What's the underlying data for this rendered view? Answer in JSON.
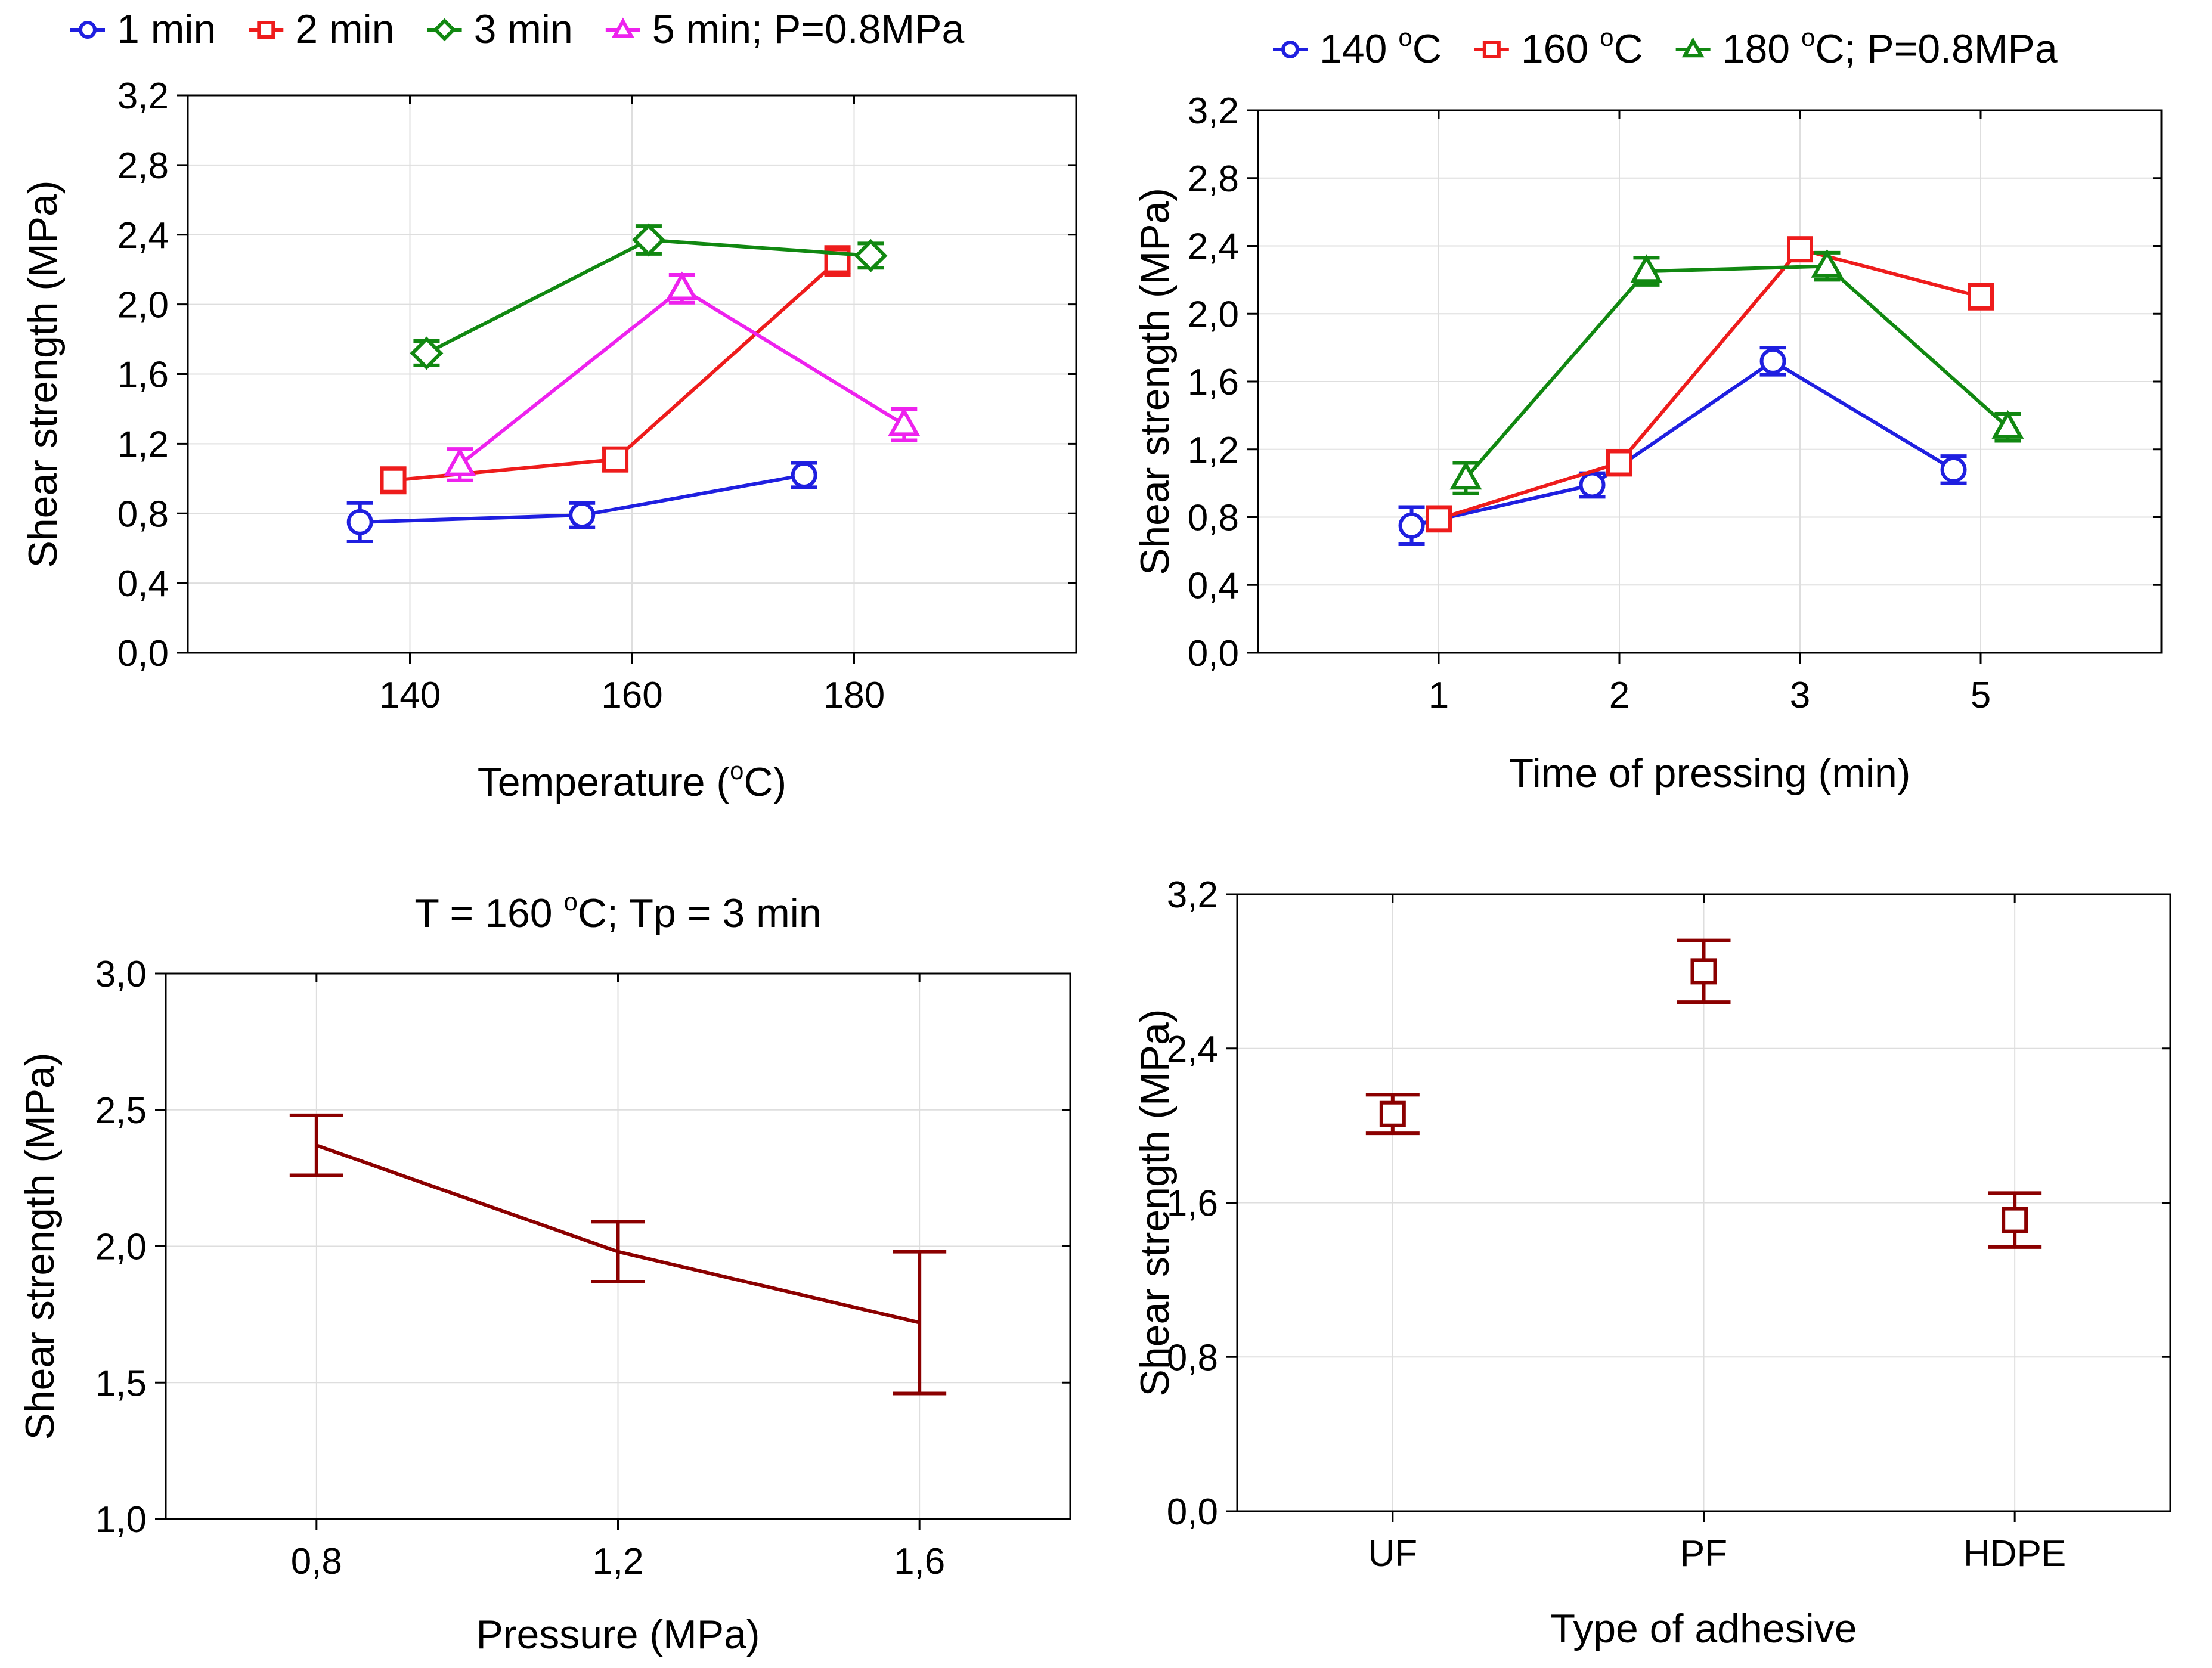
{
  "chart_data": [
    {
      "id": "a",
      "type": "line",
      "title": "",
      "xlabel": "Temperature",
      "xlabel_unit": "C",
      "xlabel_sup": "o",
      "ylabel": "Shear strength (MPa)",
      "x_ticks": [
        140,
        160,
        180
      ],
      "x_tick_labels": [
        "140",
        "160",
        "180"
      ],
      "xlim": [
        120,
        200
      ],
      "ylim": [
        0,
        3.2
      ],
      "y_ticks": [
        0,
        0.4,
        0.8,
        1.2,
        1.6,
        2.0,
        2.4,
        2.8,
        3.2
      ],
      "y_tick_labels": [
        "0,0",
        "0,4",
        "0,8",
        "1,2",
        "1,6",
        "2,0",
        "2,4",
        "2,8",
        "3,2"
      ],
      "legend_position": "top",
      "legend_suffix": "; P=0.8MPa",
      "series": [
        {
          "name": "1 min",
          "color": "#1f1fe0",
          "marker": "circle",
          "points": [
            [
              135.5,
              0.75,
              0.11
            ],
            [
              155.5,
              0.79,
              0.07
            ],
            [
              175.5,
              1.02,
              0.07
            ]
          ]
        },
        {
          "name": "2 min",
          "color": "#ee1c1c",
          "marker": "square",
          "points": [
            [
              138.5,
              0.99,
              0.07
            ],
            [
              158.5,
              1.11,
              0.06
            ],
            [
              178.5,
              2.25,
              0.08
            ]
          ]
        },
        {
          "name": "3 min",
          "color": "#118811",
          "marker": "diamond",
          "points": [
            [
              141.5,
              1.72,
              0.07
            ],
            [
              161.5,
              2.37,
              0.08
            ],
            [
              181.5,
              2.28,
              0.07
            ]
          ]
        },
        {
          "name": "5 min",
          "color": "#ee22ee",
          "marker": "triangle",
          "points": [
            [
              144.5,
              1.08,
              0.09
            ],
            [
              164.5,
              2.09,
              0.08
            ],
            [
              184.5,
              1.31,
              0.09
            ]
          ]
        }
      ]
    },
    {
      "id": "b",
      "type": "line",
      "title": "",
      "xlabel": "Time of pressing (min)",
      "ylabel": "Shear strength (MPa)",
      "x_ticks": [
        1,
        2,
        3,
        4
      ],
      "x_tick_labels": [
        "1",
        "2",
        "3",
        "5"
      ],
      "xlim": [
        0,
        5
      ],
      "ylim": [
        0,
        3.2
      ],
      "y_ticks": [
        0,
        0.4,
        0.8,
        1.2,
        1.6,
        2.0,
        2.4,
        2.8,
        3.2
      ],
      "y_tick_labels": [
        "0,0",
        "0,4",
        "0,8",
        "1,2",
        "1,6",
        "2,0",
        "2,4",
        "2,8",
        "3,2"
      ],
      "legend_position": "top",
      "legend_suffix": "; P=0.8MPa",
      "legend_sup": "o",
      "legend_unit": "C",
      "series": [
        {
          "name": "140",
          "color": "#1f1fe0",
          "marker": "circle",
          "points": [
            [
              0.85,
              0.75,
              0.11
            ],
            [
              1.85,
              0.99,
              0.07
            ],
            [
              2.85,
              1.72,
              0.08
            ],
            [
              3.85,
              1.08,
              0.08
            ]
          ]
        },
        {
          "name": "160",
          "color": "#ee1c1c",
          "marker": "square",
          "points": [
            [
              1.0,
              0.79,
              0.07
            ],
            [
              2.0,
              1.12,
              0.07
            ],
            [
              3.0,
              2.38,
              0.06
            ],
            [
              4.0,
              2.1,
              0.07
            ]
          ]
        },
        {
          "name": "180",
          "color": "#118811",
          "marker": "triangle",
          "points": [
            [
              1.15,
              1.03,
              0.09
            ],
            [
              2.15,
              2.25,
              0.08
            ],
            [
              3.15,
              2.28,
              0.08
            ],
            [
              4.15,
              1.33,
              0.08
            ]
          ]
        }
      ]
    },
    {
      "id": "c",
      "type": "line",
      "title": "T = 160 ",
      "title_sup": "o",
      "title_rest": "C; Tp = 3 min",
      "xlabel": "Pressure (MPa)",
      "ylabel": "Shear strength (MPa)",
      "x_ticks": [
        0.8,
        1.2,
        1.6
      ],
      "x_tick_labels": [
        "0,8",
        "1,2",
        "1,6"
      ],
      "xlim": [
        0.6,
        1.8
      ],
      "ylim": [
        1.0,
        3.0
      ],
      "y_ticks": [
        1.0,
        1.5,
        2.0,
        2.5,
        3.0
      ],
      "y_tick_labels": [
        "1,0",
        "1,5",
        "2,0",
        "2,5",
        "3,0"
      ],
      "series": [
        {
          "name": "shear strength",
          "color": "#8b0000",
          "marker": "none",
          "points": [
            [
              0.8,
              2.37,
              0.11
            ],
            [
              1.2,
              1.98,
              0.11
            ],
            [
              1.6,
              1.72,
              0.26
            ]
          ]
        }
      ]
    },
    {
      "id": "d",
      "type": "scatter",
      "title": "",
      "xlabel": "Type of adhesive",
      "ylabel": "Shear strength (MPa)",
      "categories": [
        "UF",
        "PF",
        "HDPE"
      ],
      "x_ticks": [
        1,
        2,
        3
      ],
      "x_tick_labels": [
        "UF",
        "PF",
        "HDPE"
      ],
      "xlim": [
        0.5,
        3.5
      ],
      "ylim": [
        0,
        3.2
      ],
      "y_ticks": [
        0,
        0.8,
        1.6,
        2.4,
        3.2
      ],
      "y_tick_labels": [
        "0,0",
        "0,8",
        "1,6",
        "2,4",
        "3,2"
      ],
      "series": [
        {
          "name": "shear strength",
          "color": "#8b0000",
          "marker": "square",
          "points": [
            [
              1,
              2.06,
              0.1
            ],
            [
              2,
              2.8,
              0.16
            ],
            [
              3,
              1.51,
              0.14
            ]
          ]
        }
      ]
    }
  ]
}
